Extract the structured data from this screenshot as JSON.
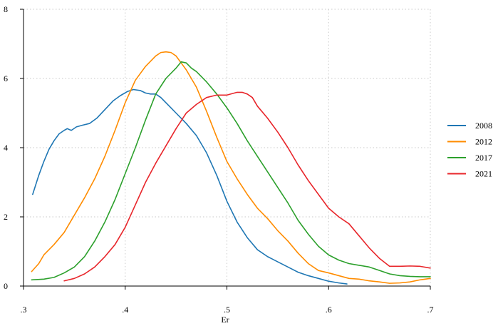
{
  "chart_data": {
    "type": "line",
    "title": "",
    "xlabel": "Er",
    "ylabel": "",
    "xlim": [
      0.3,
      0.7
    ],
    "ylim": [
      0,
      8
    ],
    "x_ticks": [
      0.3,
      0.4,
      0.5,
      0.6,
      0.7
    ],
    "x_tick_labels": [
      ".3",
      ".4",
      ".5",
      ".6",
      ".7"
    ],
    "y_ticks": [
      0,
      2,
      4,
      6,
      8
    ],
    "y_tick_labels": [
      "0",
      "2",
      "4",
      "6",
      "8"
    ],
    "grid": true,
    "legend_position": "right",
    "series": [
      {
        "name": "2008",
        "color": "#1f77b4",
        "points": [
          [
            0.309,
            2.65
          ],
          [
            0.315,
            3.2
          ],
          [
            0.32,
            3.6
          ],
          [
            0.325,
            3.95
          ],
          [
            0.33,
            4.2
          ],
          [
            0.335,
            4.4
          ],
          [
            0.34,
            4.5
          ],
          [
            0.343,
            4.55
          ],
          [
            0.347,
            4.5
          ],
          [
            0.352,
            4.6
          ],
          [
            0.358,
            4.65
          ],
          [
            0.365,
            4.7
          ],
          [
            0.372,
            4.85
          ],
          [
            0.38,
            5.1
          ],
          [
            0.388,
            5.35
          ],
          [
            0.395,
            5.5
          ],
          [
            0.402,
            5.62
          ],
          [
            0.408,
            5.68
          ],
          [
            0.415,
            5.65
          ],
          [
            0.42,
            5.58
          ],
          [
            0.425,
            5.55
          ],
          [
            0.43,
            5.55
          ],
          [
            0.435,
            5.45
          ],
          [
            0.44,
            5.3
          ],
          [
            0.445,
            5.15
          ],
          [
            0.45,
            5.0
          ],
          [
            0.46,
            4.7
          ],
          [
            0.47,
            4.35
          ],
          [
            0.48,
            3.85
          ],
          [
            0.49,
            3.2
          ],
          [
            0.5,
            2.45
          ],
          [
            0.51,
            1.85
          ],
          [
            0.52,
            1.4
          ],
          [
            0.53,
            1.05
          ],
          [
            0.54,
            0.85
          ],
          [
            0.55,
            0.7
          ],
          [
            0.56,
            0.55
          ],
          [
            0.57,
            0.4
          ],
          [
            0.58,
            0.3
          ],
          [
            0.59,
            0.22
          ],
          [
            0.6,
            0.14
          ],
          [
            0.61,
            0.09
          ],
          [
            0.618,
            0.06
          ]
        ]
      },
      {
        "name": "2012",
        "color": "#ff8c00",
        "points": [
          [
            0.308,
            0.42
          ],
          [
            0.315,
            0.65
          ],
          [
            0.32,
            0.9
          ],
          [
            0.33,
            1.2
          ],
          [
            0.34,
            1.55
          ],
          [
            0.35,
            2.05
          ],
          [
            0.36,
            2.55
          ],
          [
            0.37,
            3.1
          ],
          [
            0.38,
            3.75
          ],
          [
            0.39,
            4.5
          ],
          [
            0.4,
            5.3
          ],
          [
            0.41,
            5.95
          ],
          [
            0.42,
            6.35
          ],
          [
            0.43,
            6.65
          ],
          [
            0.435,
            6.75
          ],
          [
            0.44,
            6.77
          ],
          [
            0.445,
            6.75
          ],
          [
            0.45,
            6.65
          ],
          [
            0.455,
            6.45
          ],
          [
            0.46,
            6.25
          ],
          [
            0.47,
            5.75
          ],
          [
            0.48,
            5.05
          ],
          [
            0.49,
            4.3
          ],
          [
            0.5,
            3.6
          ],
          [
            0.51,
            3.1
          ],
          [
            0.52,
            2.65
          ],
          [
            0.53,
            2.25
          ],
          [
            0.54,
            1.95
          ],
          [
            0.55,
            1.6
          ],
          [
            0.56,
            1.3
          ],
          [
            0.57,
            0.95
          ],
          [
            0.58,
            0.65
          ],
          [
            0.59,
            0.45
          ],
          [
            0.6,
            0.38
          ],
          [
            0.61,
            0.3
          ],
          [
            0.62,
            0.22
          ],
          [
            0.63,
            0.2
          ],
          [
            0.64,
            0.15
          ],
          [
            0.65,
            0.12
          ],
          [
            0.66,
            0.08
          ],
          [
            0.67,
            0.09
          ],
          [
            0.68,
            0.12
          ],
          [
            0.69,
            0.18
          ],
          [
            0.7,
            0.22
          ]
        ]
      },
      {
        "name": "2017",
        "color": "#2ca02c",
        "points": [
          [
            0.308,
            0.18
          ],
          [
            0.32,
            0.2
          ],
          [
            0.33,
            0.25
          ],
          [
            0.34,
            0.38
          ],
          [
            0.35,
            0.55
          ],
          [
            0.36,
            0.85
          ],
          [
            0.37,
            1.3
          ],
          [
            0.38,
            1.85
          ],
          [
            0.39,
            2.5
          ],
          [
            0.4,
            3.25
          ],
          [
            0.41,
            4.0
          ],
          [
            0.42,
            4.8
          ],
          [
            0.43,
            5.55
          ],
          [
            0.44,
            6.0
          ],
          [
            0.45,
            6.3
          ],
          [
            0.455,
            6.48
          ],
          [
            0.46,
            6.45
          ],
          [
            0.465,
            6.3
          ],
          [
            0.47,
            6.2
          ],
          [
            0.48,
            5.9
          ],
          [
            0.49,
            5.55
          ],
          [
            0.5,
            5.15
          ],
          [
            0.51,
            4.7
          ],
          [
            0.52,
            4.2
          ],
          [
            0.53,
            3.75
          ],
          [
            0.54,
            3.3
          ],
          [
            0.55,
            2.85
          ],
          [
            0.56,
            2.4
          ],
          [
            0.57,
            1.9
          ],
          [
            0.58,
            1.5
          ],
          [
            0.59,
            1.15
          ],
          [
            0.6,
            0.9
          ],
          [
            0.61,
            0.75
          ],
          [
            0.62,
            0.65
          ],
          [
            0.63,
            0.6
          ],
          [
            0.64,
            0.55
          ],
          [
            0.65,
            0.45
          ],
          [
            0.66,
            0.35
          ],
          [
            0.67,
            0.3
          ],
          [
            0.68,
            0.28
          ],
          [
            0.69,
            0.27
          ],
          [
            0.7,
            0.27
          ]
        ]
      },
      {
        "name": "2021",
        "color": "#e8262b",
        "points": [
          [
            0.34,
            0.15
          ],
          [
            0.35,
            0.22
          ],
          [
            0.36,
            0.35
          ],
          [
            0.37,
            0.55
          ],
          [
            0.38,
            0.85
          ],
          [
            0.39,
            1.2
          ],
          [
            0.4,
            1.7
          ],
          [
            0.41,
            2.35
          ],
          [
            0.42,
            3.0
          ],
          [
            0.43,
            3.55
          ],
          [
            0.44,
            4.05
          ],
          [
            0.45,
            4.55
          ],
          [
            0.46,
            5.0
          ],
          [
            0.47,
            5.25
          ],
          [
            0.48,
            5.45
          ],
          [
            0.49,
            5.52
          ],
          [
            0.5,
            5.52
          ],
          [
            0.51,
            5.6
          ],
          [
            0.515,
            5.6
          ],
          [
            0.52,
            5.55
          ],
          [
            0.525,
            5.45
          ],
          [
            0.53,
            5.2
          ],
          [
            0.54,
            4.85
          ],
          [
            0.55,
            4.45
          ],
          [
            0.56,
            4.0
          ],
          [
            0.57,
            3.5
          ],
          [
            0.58,
            3.05
          ],
          [
            0.59,
            2.65
          ],
          [
            0.6,
            2.25
          ],
          [
            0.61,
            2.0
          ],
          [
            0.62,
            1.8
          ],
          [
            0.63,
            1.45
          ],
          [
            0.64,
            1.1
          ],
          [
            0.65,
            0.8
          ],
          [
            0.66,
            0.57
          ],
          [
            0.67,
            0.57
          ],
          [
            0.68,
            0.58
          ],
          [
            0.69,
            0.57
          ],
          [
            0.7,
            0.52
          ]
        ]
      }
    ]
  }
}
